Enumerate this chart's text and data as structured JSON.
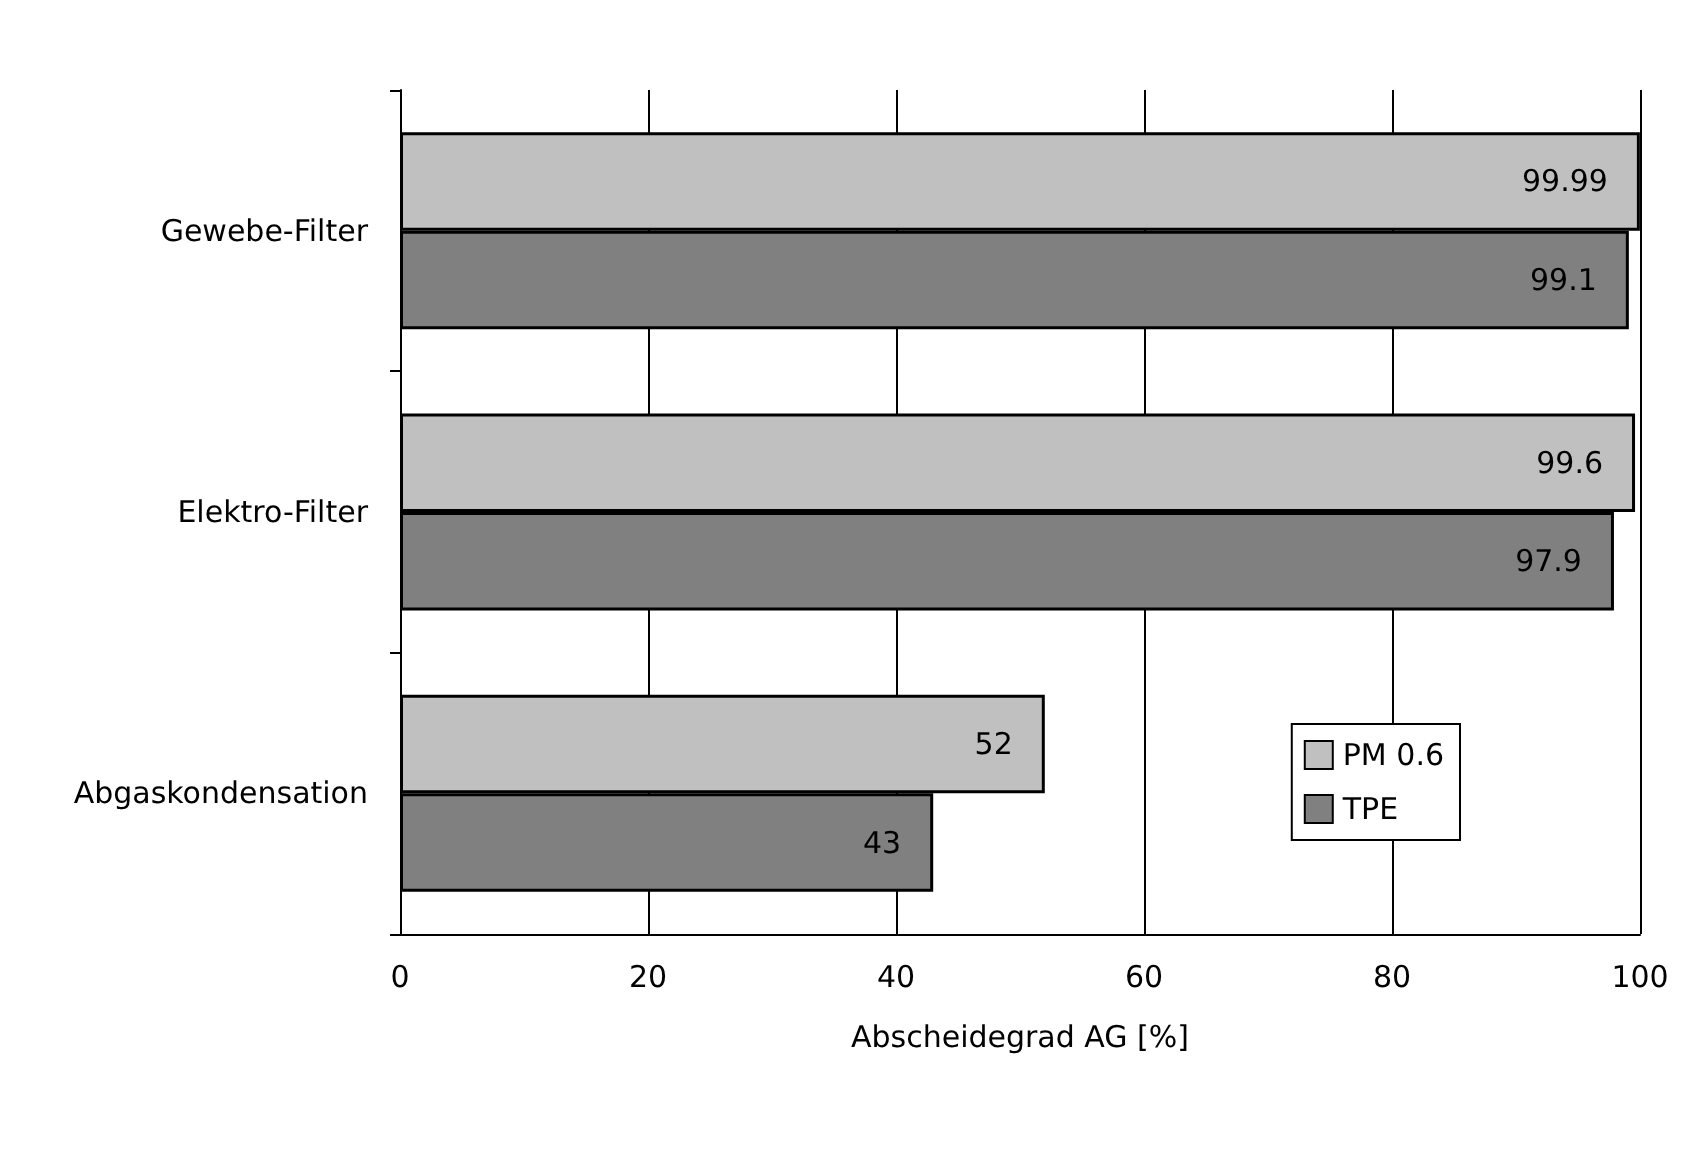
{
  "chart_data": {
    "type": "bar",
    "orientation": "horizontal",
    "xlabel": "Abscheidegrad AG [%]",
    "categories": [
      "Gewebe-Filter",
      "Elektro-Filter",
      "Abgaskondensation"
    ],
    "series": [
      {
        "name": "PM 0.6",
        "color": "#c0c0c0",
        "values": [
          99.99,
          99.6,
          52
        ]
      },
      {
        "name": "TPE",
        "color": "#808080",
        "values": [
          99.1,
          97.9,
          43
        ]
      }
    ],
    "xlim": [
      0,
      100
    ],
    "xticks": [
      0,
      20,
      40,
      60,
      80,
      100
    ],
    "grid": "x",
    "legend": "bottom right",
    "data_labels": true
  }
}
